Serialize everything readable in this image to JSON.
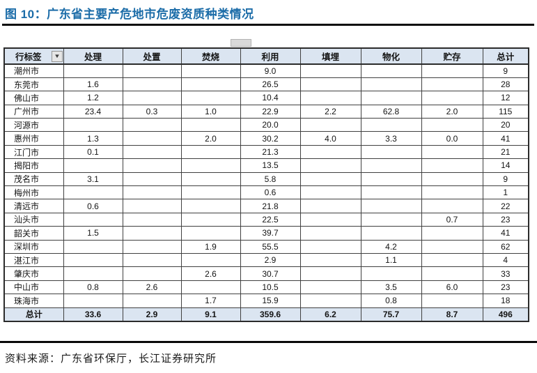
{
  "figure": {
    "title": "图 10：广东省主要产危地市危废资质种类情况"
  },
  "source": {
    "text": "资料来源：广东省环保厅，长江证券研究所"
  },
  "colors": {
    "title_blue": "#1b6ca8",
    "header_bg": "#dbe5f1",
    "total_row_bg": "#dbe5f1",
    "table_border": "#404040",
    "rule": "#0a0a0a"
  },
  "icons": {
    "filter_caret": "▼"
  },
  "chart_data": {
    "type": "table",
    "title": "广东省主要产危地市危废资质种类情况",
    "columns": [
      "行标签",
      "处理",
      "处置",
      "焚烧",
      "利用",
      "填埋",
      "物化",
      "贮存",
      "总计"
    ],
    "rows": [
      {
        "label": "潮州市",
        "values": [
          "",
          "",
          "",
          "9.0",
          "",
          "",
          "",
          "9"
        ]
      },
      {
        "label": "东莞市",
        "values": [
          "1.6",
          "",
          "",
          "26.5",
          "",
          "",
          "",
          "28"
        ]
      },
      {
        "label": "佛山市",
        "values": [
          "1.2",
          "",
          "",
          "10.4",
          "",
          "",
          "",
          "12"
        ]
      },
      {
        "label": "广州市",
        "values": [
          "23.4",
          "0.3",
          "1.0",
          "22.9",
          "2.2",
          "62.8",
          "2.0",
          "115"
        ]
      },
      {
        "label": "河源市",
        "values": [
          "",
          "",
          "",
          "20.0",
          "",
          "",
          "",
          "20"
        ]
      },
      {
        "label": "惠州市",
        "values": [
          "1.3",
          "",
          "2.0",
          "30.2",
          "4.0",
          "3.3",
          "0.0",
          "41"
        ]
      },
      {
        "label": "江门市",
        "values": [
          "0.1",
          "",
          "",
          "21.3",
          "",
          "",
          "",
          "21"
        ]
      },
      {
        "label": "揭阳市",
        "values": [
          "",
          "",
          "",
          "13.5",
          "",
          "",
          "",
          "14"
        ]
      },
      {
        "label": "茂名市",
        "values": [
          "3.1",
          "",
          "",
          "5.8",
          "",
          "",
          "",
          "9"
        ]
      },
      {
        "label": "梅州市",
        "values": [
          "",
          "",
          "",
          "0.6",
          "",
          "",
          "",
          "1"
        ]
      },
      {
        "label": "清远市",
        "values": [
          "0.6",
          "",
          "",
          "21.8",
          "",
          "",
          "",
          "22"
        ]
      },
      {
        "label": "汕头市",
        "values": [
          "",
          "",
          "",
          "22.5",
          "",
          "",
          "0.7",
          "23"
        ]
      },
      {
        "label": "韶关市",
        "values": [
          "1.5",
          "",
          "",
          "39.7",
          "",
          "",
          "",
          "41"
        ]
      },
      {
        "label": "深圳市",
        "values": [
          "",
          "",
          "1.9",
          "55.5",
          "",
          "4.2",
          "",
          "62"
        ]
      },
      {
        "label": "湛江市",
        "values": [
          "",
          "",
          "",
          "2.9",
          "",
          "1.1",
          "",
          "4"
        ]
      },
      {
        "label": "肇庆市",
        "values": [
          "",
          "",
          "2.6",
          "30.7",
          "",
          "",
          "",
          "33"
        ]
      },
      {
        "label": "中山市",
        "values": [
          "0.8",
          "2.6",
          "",
          "10.5",
          "",
          "3.5",
          "6.0",
          "23"
        ]
      },
      {
        "label": "珠海市",
        "values": [
          "",
          "",
          "1.7",
          "15.9",
          "",
          "0.8",
          "",
          "18"
        ]
      }
    ],
    "total_row": {
      "label": "总计",
      "values": [
        "33.6",
        "2.9",
        "9.1",
        "359.6",
        "6.2",
        "75.7",
        "8.7",
        "496"
      ]
    }
  }
}
